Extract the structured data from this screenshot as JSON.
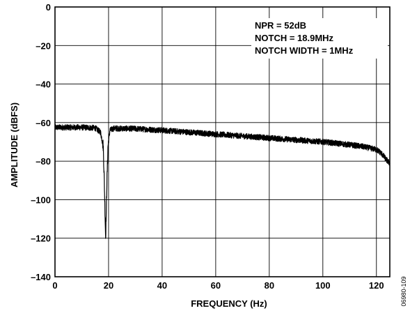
{
  "chart_data": {
    "type": "line",
    "title": "",
    "xlabel": "FREQUENCY (Hz)",
    "ylabel": "AMPLITUDE (dBFS)",
    "xlim": [
      0,
      125
    ],
    "ylim": [
      -140,
      0
    ],
    "xticks": [
      0,
      20,
      40,
      60,
      80,
      100,
      120
    ],
    "yticks": [
      0,
      -20,
      -40,
      -60,
      -80,
      -100,
      -120,
      -140
    ],
    "x_tick_labels": [
      "0",
      "20",
      "40",
      "60",
      "80",
      "100",
      "120"
    ],
    "y_tick_labels": [
      "0",
      "–20",
      "–40",
      "–60",
      "–80",
      "–100",
      "–120",
      "–140"
    ],
    "grid": true,
    "annotations": [
      "NPR = 52dB",
      "NOTCH = 18.9MHz",
      "NOTCH WIDTH = 1MHz"
    ],
    "figure_id": "06980-109",
    "series": [
      {
        "color": "#000000",
        "x": [
          0,
          5,
          10,
          15,
          17,
          18,
          18.4,
          18.9,
          19.4,
          19.8,
          20.5,
          22,
          30,
          40,
          50,
          60,
          70,
          80,
          90,
          100,
          110,
          115,
          120,
          121.5,
          122.5,
          123.5,
          124.5,
          125
        ],
        "y": [
          -62.5,
          -62.5,
          -62.5,
          -62.8,
          -65,
          -72,
          -90,
          -120,
          -90,
          -72,
          -64,
          -63,
          -63.2,
          -64,
          -65,
          -66,
          -67,
          -68,
          -69,
          -70,
          -71.5,
          -72.5,
          -74,
          -75.5,
          -77,
          -79,
          -80.5,
          -81
        ],
        "noise_band_db": 3
      }
    ]
  }
}
